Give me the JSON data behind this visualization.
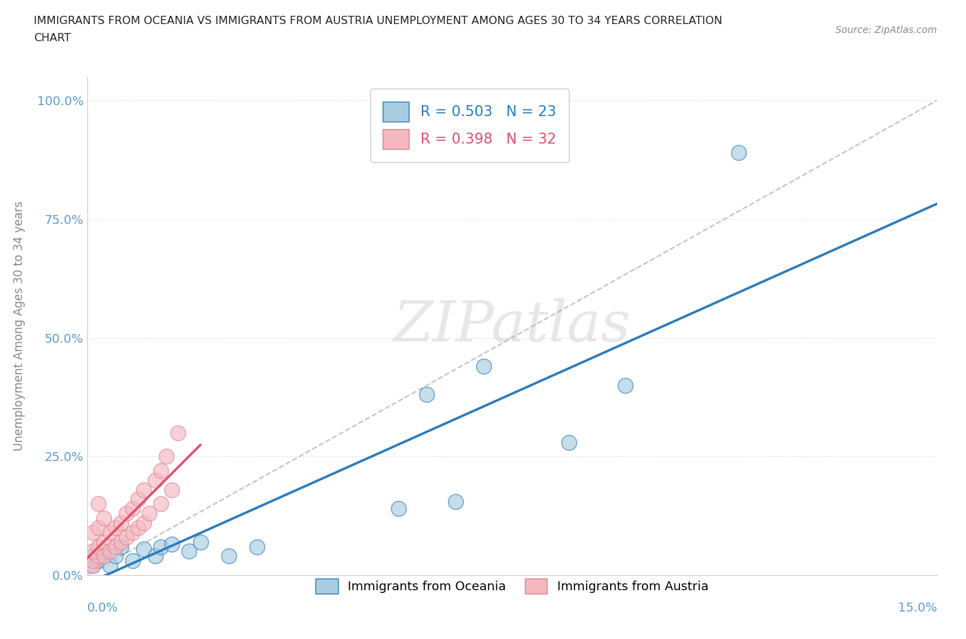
{
  "title_line1": "IMMIGRANTS FROM OCEANIA VS IMMIGRANTS FROM AUSTRIA UNEMPLOYMENT AMONG AGES 30 TO 34 YEARS CORRELATION",
  "title_line2": "CHART",
  "source": "Source: ZipAtlas.com",
  "ylabel": "Unemployment Among Ages 30 to 34 years",
  "ytick_labels": [
    "0.0%",
    "25.0%",
    "50.0%",
    "75.0%",
    "100.0%"
  ],
  "ytick_values": [
    0,
    0.25,
    0.5,
    0.75,
    1.0
  ],
  "xmin": 0.0,
  "xmax": 0.15,
  "ymin": 0.0,
  "ymax": 1.05,
  "R_oceania": 0.503,
  "N_oceania": 23,
  "R_austria": 0.398,
  "N_austria": 32,
  "color_oceania": "#a8cce0",
  "color_austria": "#f4b8c1",
  "color_line_oceania": "#2b7bba",
  "color_line_austria": "#e05070",
  "watermark": "ZIPatlas",
  "legend_label_oceania": "Immigrants from Oceania",
  "legend_label_austria": "Immigrants from Austria",
  "oceania_x": [
    0.001,
    0.001,
    0.002,
    0.003,
    0.004,
    0.005,
    0.006,
    0.008,
    0.01,
    0.012,
    0.013,
    0.015,
    0.018,
    0.02,
    0.025,
    0.03,
    0.055,
    0.06,
    0.065,
    0.07,
    0.085,
    0.095,
    0.115
  ],
  "oceania_y": [
    0.02,
    0.04,
    0.03,
    0.05,
    0.02,
    0.04,
    0.06,
    0.03,
    0.055,
    0.04,
    0.06,
    0.065,
    0.05,
    0.07,
    0.04,
    0.06,
    0.14,
    0.38,
    0.155,
    0.44,
    0.28,
    0.4,
    0.89
  ],
  "austria_x": [
    0.001,
    0.001,
    0.001,
    0.001,
    0.002,
    0.002,
    0.002,
    0.002,
    0.003,
    0.003,
    0.003,
    0.004,
    0.004,
    0.005,
    0.005,
    0.006,
    0.006,
    0.007,
    0.007,
    0.008,
    0.008,
    0.009,
    0.009,
    0.01,
    0.01,
    0.011,
    0.012,
    0.013,
    0.013,
    0.014,
    0.015,
    0.016
  ],
  "austria_y": [
    0.02,
    0.03,
    0.05,
    0.09,
    0.04,
    0.06,
    0.1,
    0.15,
    0.04,
    0.07,
    0.12,
    0.05,
    0.09,
    0.06,
    0.1,
    0.07,
    0.11,
    0.08,
    0.13,
    0.09,
    0.14,
    0.1,
    0.16,
    0.11,
    0.18,
    0.13,
    0.2,
    0.15,
    0.22,
    0.25,
    0.18,
    0.3
  ]
}
